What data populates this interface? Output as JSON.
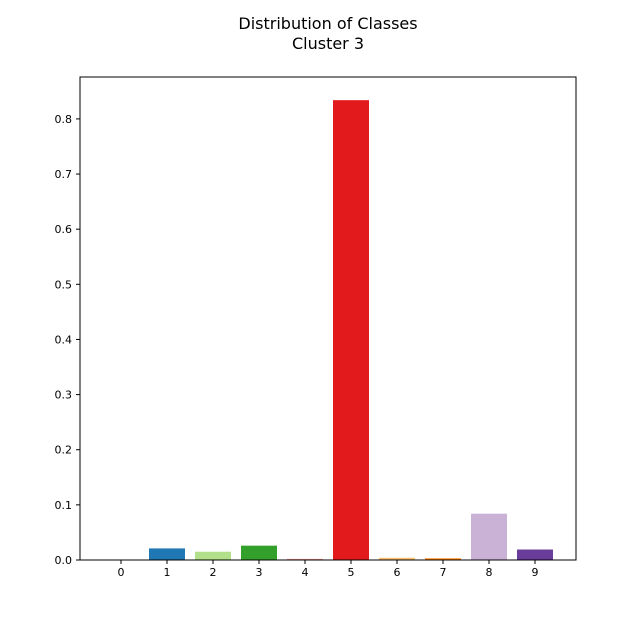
{
  "chart_data": {
    "type": "bar",
    "title": [
      "Distribution of Classes",
      "Cluster 3"
    ],
    "xlabel": "",
    "ylabel": "",
    "categories": [
      "0",
      "1",
      "2",
      "3",
      "4",
      "5",
      "6",
      "7",
      "8",
      "9"
    ],
    "values": [
      0.0,
      0.021,
      0.015,
      0.026,
      0.002,
      0.834,
      0.004,
      0.003,
      0.084,
      0.019
    ],
    "colors": [
      "#a6cee3",
      "#1f78b4",
      "#b2df8a",
      "#33a02c",
      "#fb9a99",
      "#e31a1c",
      "#fdbf6f",
      "#ff7f00",
      "#cab2d6",
      "#6a3d9a"
    ],
    "yticks": [
      "0.0",
      "0.1",
      "0.2",
      "0.3",
      "0.4",
      "0.5",
      "0.6",
      "0.7",
      "0.8"
    ],
    "ylim": [
      0,
      0.876
    ],
    "grid": false
  }
}
